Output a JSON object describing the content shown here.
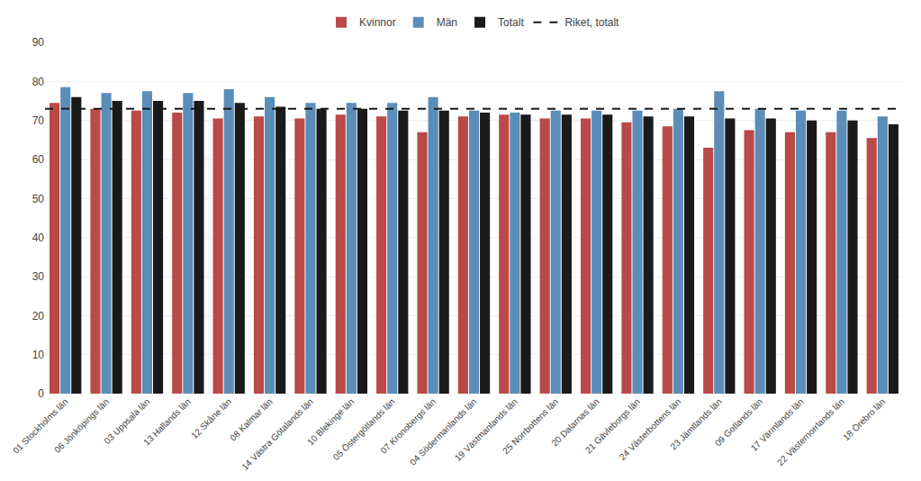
{
  "chart_data": {
    "type": "bar",
    "categories": [
      "01 Stockholms län",
      "06 Jönköpings län",
      "03 Uppsala län",
      "13 Hallands län",
      "12 Skåne län",
      "08 Kalmar län",
      "14 Västra Götalands län",
      "10 Blekinge län",
      "05 Östergötlands län",
      "07 Kronobergs län",
      "04 Södermanlands län",
      "19 Västmanlands län",
      "25 Norrbottens län",
      "20 Dalarnas län",
      "21 Gävleborgs län",
      "24 Västerbottens län",
      "23 Jämtlands län",
      "09 Gotlands län",
      "17 Värmlands län",
      "22 Västernorrlands län",
      "18 Örebro län"
    ],
    "series": [
      {
        "name": "Kvinnor",
        "color": "#b94a48",
        "values": [
          74.5,
          73.0,
          72.5,
          72.0,
          70.5,
          71.0,
          70.5,
          71.5,
          71.0,
          67.0,
          71.0,
          71.5,
          70.5,
          70.5,
          69.5,
          68.5,
          63.0,
          67.5,
          67.0,
          67.0,
          65.5
        ]
      },
      {
        "name": "Män",
        "color": "#5b8db8",
        "values": [
          78.5,
          77.0,
          77.5,
          77.0,
          78.0,
          76.0,
          74.5,
          74.5,
          74.5,
          76.0,
          72.5,
          72.0,
          72.5,
          72.5,
          72.5,
          73.0,
          77.5,
          73.0,
          72.5,
          72.5,
          71.0
        ]
      },
      {
        "name": "Totalt",
        "color": "#1a1a1a",
        "values": [
          76.0,
          75.0,
          75.0,
          75.0,
          74.5,
          73.5,
          73.0,
          73.0,
          72.5,
          72.5,
          72.0,
          71.5,
          71.5,
          71.5,
          71.0,
          71.0,
          70.5,
          70.5,
          70.0,
          70.0,
          69.0
        ]
      }
    ],
    "reference_lines": [
      {
        "name": "Riket, totalt",
        "value": 73.0,
        "color": "#1a1a1a",
        "line_style": "dashed"
      }
    ],
    "ylim": [
      0,
      90
    ],
    "yticks": [
      0,
      10,
      20,
      30,
      40,
      50,
      60,
      70,
      80,
      90
    ],
    "grid": true,
    "legend": "top"
  }
}
